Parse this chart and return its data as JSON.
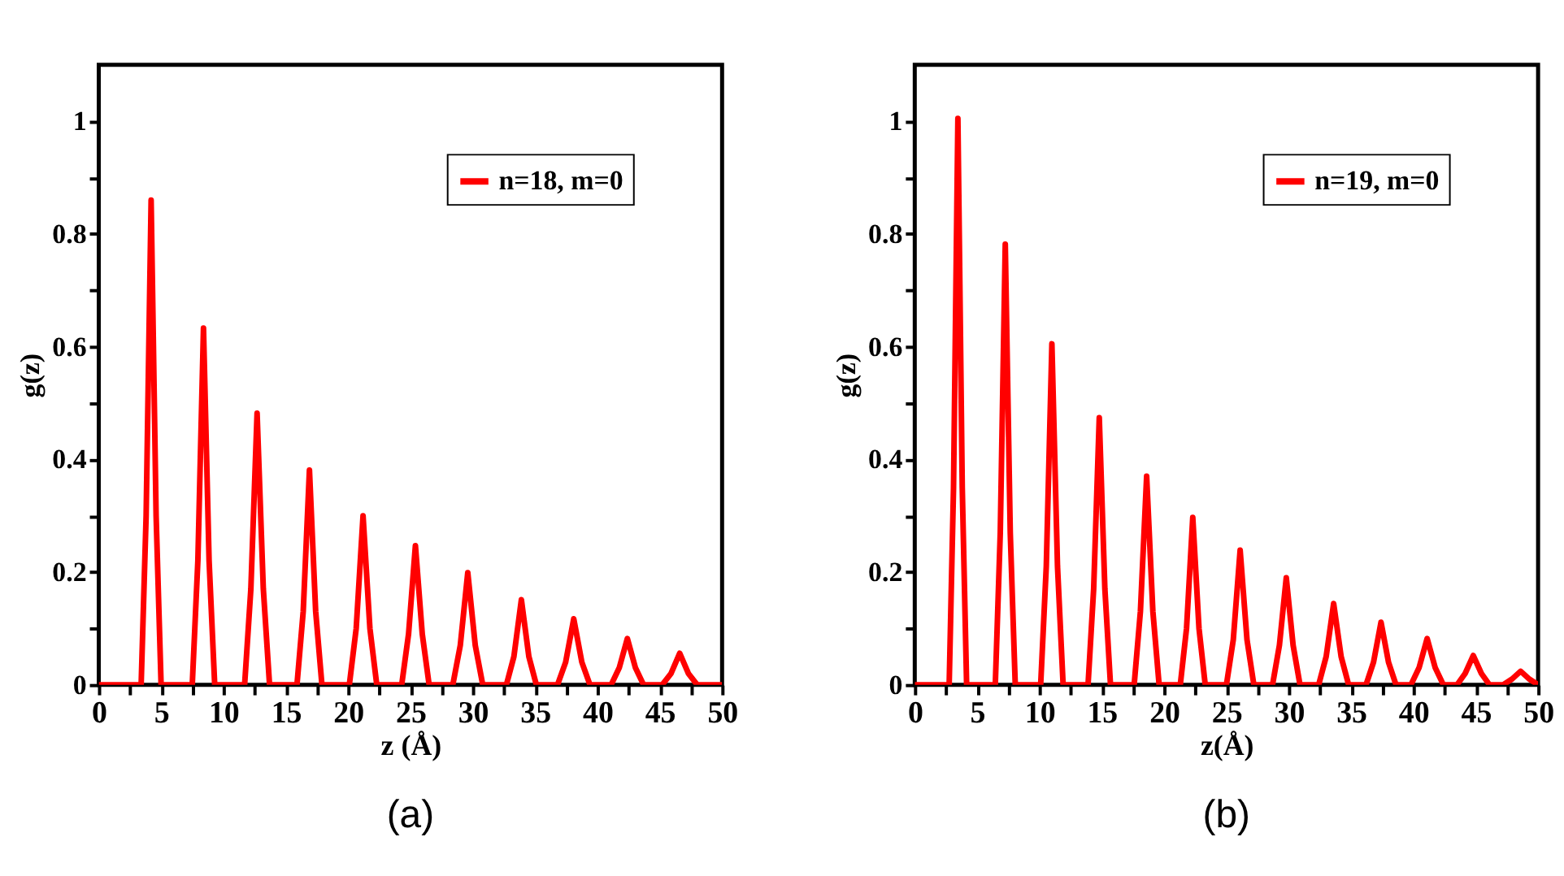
{
  "chart_data": [
    {
      "type": "line",
      "xlabel": "z (Å)",
      "ylabel": "g(z)",
      "annotations": [
        "(a)"
      ],
      "legend": "top right",
      "grid": false,
      "marker": "none",
      "line_style": "solid",
      "xlim": [
        0,
        50
      ],
      "ylim": [
        0,
        1.1
      ],
      "xticks": [
        0,
        {
          "value": 2.5,
          "label": null
        },
        5,
        {
          "value": 7.5,
          "label": null
        },
        10,
        {
          "value": 12.5,
          "label": null
        },
        15,
        {
          "value": 17.5,
          "label": null
        },
        20,
        {
          "value": 22.5,
          "label": null
        },
        25,
        {
          "value": 27.5,
          "label": null
        },
        30,
        {
          "value": 32.5,
          "label": null
        },
        35,
        {
          "value": 37.5,
          "label": null
        },
        40,
        {
          "value": 42.5,
          "label": null
        },
        45,
        {
          "value": 47.5,
          "label": null
        },
        50
      ],
      "yticks": [
        0,
        {
          "value": 0.1,
          "label": null
        },
        0.2,
        {
          "value": 0.3,
          "label": null
        },
        0.4,
        {
          "value": 0.5,
          "label": null
        },
        0.6,
        {
          "value": 0.7,
          "label": null
        },
        0.8,
        {
          "value": 0.9,
          "label": null
        },
        1
      ],
      "series": [
        {
          "name": "n=18, m=0",
          "color": "#ff0000",
          "x": [
            0,
            3.4,
            3.8,
            4.2,
            4.6,
            5.0,
            7.5,
            7.95,
            8.4,
            8.85,
            9.3,
            11.7,
            12.2,
            12.7,
            13.2,
            13.7,
            15.9,
            16.4,
            16.9,
            17.4,
            17.9,
            20.1,
            20.65,
            21.2,
            21.75,
            22.3,
            24.3,
            24.85,
            25.4,
            25.95,
            26.5,
            28.4,
            29.0,
            29.6,
            30.2,
            30.8,
            32.7,
            33.3,
            33.9,
            34.5,
            35.1,
            36.8,
            37.45,
            38.1,
            38.75,
            39.4,
            41.1,
            41.75,
            42.4,
            43.05,
            43.7,
            45.2,
            45.9,
            46.6,
            47.3,
            48.0,
            50
          ],
          "values": [
            0,
            0,
            0.3,
            0.86,
            0.3,
            0,
            0,
            0.22,
            0.633,
            0.22,
            0,
            0,
            0.17,
            0.482,
            0.17,
            0,
            0,
            0.13,
            0.381,
            0.13,
            0,
            0,
            0.1,
            0.3,
            0.1,
            0,
            0,
            0.09,
            0.247,
            0.09,
            0,
            0,
            0.07,
            0.199,
            0.07,
            0,
            0,
            0.05,
            0.151,
            0.05,
            0,
            0,
            0.04,
            0.117,
            0.04,
            0,
            0,
            0.03,
            0.082,
            0.03,
            0,
            0,
            0.02,
            0.056,
            0.02,
            0,
            0
          ]
        }
      ]
    },
    {
      "type": "line",
      "xlabel": "z(Å)",
      "ylabel": "g(z)",
      "annotations": [
        "(b)"
      ],
      "legend": "top right",
      "grid": false,
      "marker": "none",
      "line_style": "solid",
      "xlim": [
        0,
        50
      ],
      "ylim": [
        0,
        1.1
      ],
      "xticks": [
        0,
        {
          "value": 2.5,
          "label": null
        },
        5,
        {
          "value": 7.5,
          "label": null
        },
        10,
        {
          "value": 12.5,
          "label": null
        },
        15,
        {
          "value": 17.5,
          "label": null
        },
        20,
        {
          "value": 22.5,
          "label": null
        },
        25,
        {
          "value": 27.5,
          "label": null
        },
        30,
        {
          "value": 32.5,
          "label": null
        },
        35,
        {
          "value": 37.5,
          "label": null
        },
        40,
        {
          "value": 42.5,
          "label": null
        },
        45,
        {
          "value": 47.5,
          "label": null
        },
        50
      ],
      "yticks": [
        0,
        {
          "value": 0.1,
          "label": null
        },
        0.2,
        {
          "value": 0.3,
          "label": null
        },
        0.4,
        {
          "value": 0.5,
          "label": null
        },
        0.6,
        {
          "value": 0.7,
          "label": null
        },
        0.8,
        {
          "value": 0.9,
          "label": null
        },
        1
      ],
      "series": [
        {
          "name": "n=19, m=0",
          "color": "#ff0000",
          "x": [
            0,
            2.76,
            3.11,
            3.46,
            3.81,
            4.16,
            6.46,
            6.86,
            7.26,
            7.66,
            8.06,
            10.1,
            10.55,
            11.0,
            11.45,
            11.9,
            13.9,
            14.35,
            14.8,
            15.25,
            15.7,
            17.6,
            18.1,
            18.6,
            19.1,
            19.6,
            21.3,
            21.8,
            22.3,
            22.8,
            23.3,
            25.0,
            25.55,
            26.1,
            26.65,
            27.2,
            28.7,
            29.25,
            29.8,
            30.35,
            30.9,
            32.4,
            33.0,
            33.6,
            34.2,
            34.8,
            36.2,
            36.8,
            37.4,
            38.0,
            38.6,
            39.8,
            40.45,
            41.1,
            41.75,
            42.4,
            43.5,
            44.15,
            44.8,
            45.45,
            46.1,
            47.2,
            47.9,
            48.6,
            49.3,
            50
          ],
          "values": [
            0,
            0,
            0.35,
            1.005,
            0.35,
            0,
            0,
            0.27,
            0.782,
            0.27,
            0,
            0,
            0.21,
            0.605,
            0.21,
            0,
            0,
            0.17,
            0.474,
            0.17,
            0,
            0,
            0.13,
            0.37,
            0.13,
            0,
            0,
            0.1,
            0.297,
            0.1,
            0,
            0,
            0.08,
            0.239,
            0.08,
            0,
            0,
            0.07,
            0.19,
            0.07,
            0,
            0,
            0.05,
            0.144,
            0.05,
            0,
            0,
            0.04,
            0.111,
            0.04,
            0,
            0,
            0.03,
            0.082,
            0.03,
            0,
            0,
            0.02,
            0.052,
            0.02,
            0,
            0,
            0.01,
            0.024,
            0.01,
            0
          ]
        }
      ]
    }
  ]
}
